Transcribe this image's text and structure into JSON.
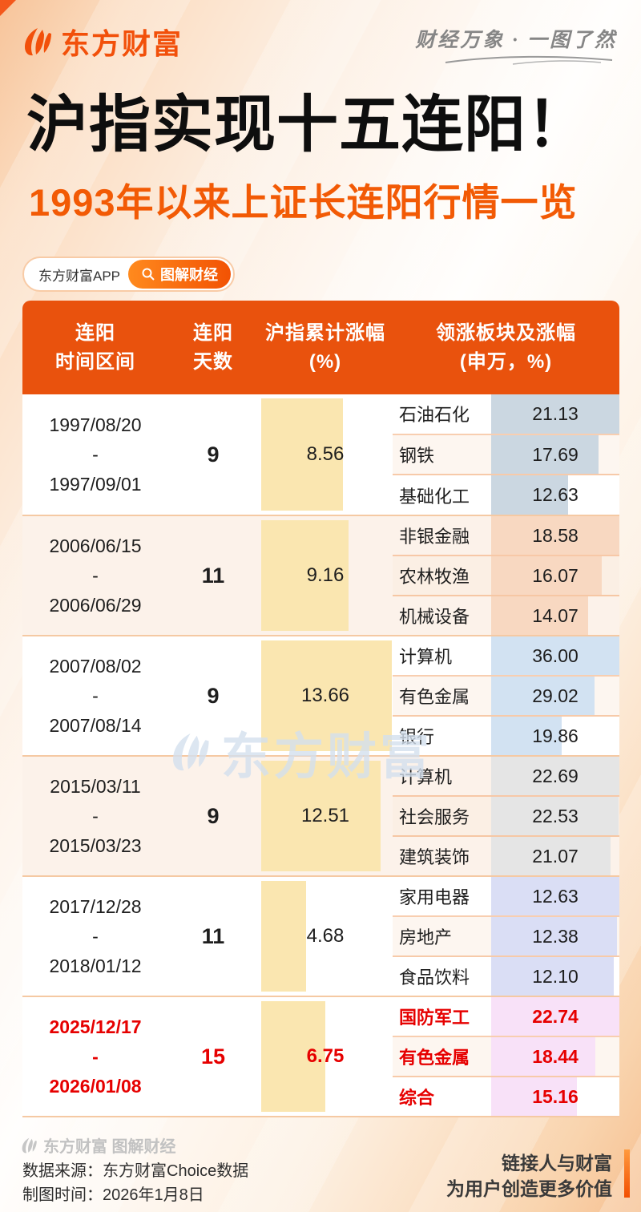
{
  "brand": {
    "logo_text": "东方财富",
    "tagline": "财经万象 · 一图了然"
  },
  "title": "沪指实现十五连阳！",
  "subtitle": "1993年以来上证长连阳行情一览",
  "badge": {
    "app_label": "东方财富APP",
    "pill_label": "图解财经"
  },
  "table": {
    "range_separator": "-",
    "headers": {
      "col1": [
        "连阳",
        "时间区间"
      ],
      "col2": [
        "连阳",
        "天数"
      ],
      "col3": [
        "沪指累计涨幅",
        "(%)"
      ],
      "col4": [
        "领涨板块及涨幅",
        "(申万，%)"
      ]
    },
    "rows": [
      {
        "start": "1997/08/20",
        "end": "1997/09/01",
        "days": "9",
        "gain": "8.56",
        "highlight": false,
        "bar_color": "#CBD7E1",
        "row_bg": "#FFFFFF",
        "sectors": [
          {
            "name": "石油石化",
            "value": "21.13"
          },
          {
            "name": "钢铁",
            "value": "17.69"
          },
          {
            "name": "基础化工",
            "value": "12.63"
          }
        ]
      },
      {
        "start": "2006/06/15",
        "end": "2006/06/29",
        "days": "11",
        "gain": "9.16",
        "highlight": false,
        "bar_color": "#F8D8C1",
        "row_bg": "#FCF2EA",
        "sectors": [
          {
            "name": "非银金融",
            "value": "18.58"
          },
          {
            "name": "农林牧渔",
            "value": "16.07"
          },
          {
            "name": "机械设备",
            "value": "14.07"
          }
        ]
      },
      {
        "start": "2007/08/02",
        "end": "2007/08/14",
        "days": "9",
        "gain": "13.66",
        "highlight": false,
        "bar_color": "#D2E2F2",
        "row_bg": "#FFFFFF",
        "sectors": [
          {
            "name": "计算机",
            "value": "36.00"
          },
          {
            "name": "有色金属",
            "value": "29.02"
          },
          {
            "name": "银行",
            "value": "19.86"
          }
        ]
      },
      {
        "start": "2015/03/11",
        "end": "2015/03/23",
        "days": "9",
        "gain": "12.51",
        "highlight": false,
        "bar_color": "#E5E5E5",
        "row_bg": "#FCF2EA",
        "sectors": [
          {
            "name": "计算机",
            "value": "22.69"
          },
          {
            "name": "社会服务",
            "value": "22.53"
          },
          {
            "name": "建筑装饰",
            "value": "21.07"
          }
        ]
      },
      {
        "start": "2017/12/28",
        "end": "2018/01/12",
        "days": "11",
        "gain": "4.68",
        "highlight": false,
        "bar_color": "#DADEF5",
        "row_bg": "#FFFFFF",
        "sectors": [
          {
            "name": "家用电器",
            "value": "12.63"
          },
          {
            "name": "房地产",
            "value": "12.38"
          },
          {
            "name": "食品饮料",
            "value": "12.10"
          }
        ]
      },
      {
        "start": "2025/12/17",
        "end": "2026/01/08",
        "days": "15",
        "gain": "6.75",
        "highlight": true,
        "bar_color": "#F8E1F8",
        "row_bg": "#FFFFFF",
        "sectors": [
          {
            "name": "国防军工",
            "value": "22.74"
          },
          {
            "name": "有色金属",
            "value": "18.44"
          },
          {
            "name": "综合",
            "value": "15.16"
          }
        ]
      }
    ]
  },
  "chart_data": {
    "type": "table",
    "title": "沪指实现十五连阳！",
    "subtitle": "1993年以来上证长连阳行情一览",
    "columns": [
      "连阳时间区间",
      "连阳天数",
      "沪指累计涨幅(%)",
      "领涨板块及涨幅(申万，%)"
    ],
    "rows": [
      {
        "period": "1997/08/20-1997/09/01",
        "days": 9,
        "index_gain_pct": 8.56,
        "leading_sectors": [
          [
            "石油石化",
            21.13
          ],
          [
            "钢铁",
            17.69
          ],
          [
            "基础化工",
            12.63
          ]
        ]
      },
      {
        "period": "2006/06/15-2006/06/29",
        "days": 11,
        "index_gain_pct": 9.16,
        "leading_sectors": [
          [
            "非银金融",
            18.58
          ],
          [
            "农林牧渔",
            16.07
          ],
          [
            "机械设备",
            14.07
          ]
        ]
      },
      {
        "period": "2007/08/02-2007/08/14",
        "days": 9,
        "index_gain_pct": 13.66,
        "leading_sectors": [
          [
            "计算机",
            36.0
          ],
          [
            "有色金属",
            29.02
          ],
          [
            "银行",
            19.86
          ]
        ]
      },
      {
        "period": "2015/03/11-2015/03/23",
        "days": 9,
        "index_gain_pct": 12.51,
        "leading_sectors": [
          [
            "计算机",
            22.69
          ],
          [
            "社会服务",
            22.53
          ],
          [
            "建筑装饰",
            21.07
          ]
        ]
      },
      {
        "period": "2017/12/28-2018/01/12",
        "days": 11,
        "index_gain_pct": 4.68,
        "leading_sectors": [
          [
            "家用电器",
            12.63
          ],
          [
            "房地产",
            12.38
          ],
          [
            "食品饮料",
            12.1
          ]
        ]
      },
      {
        "period": "2025/12/17-2026/01/08",
        "days": 15,
        "index_gain_pct": 6.75,
        "leading_sectors": [
          [
            "国防军工",
            22.74
          ],
          [
            "有色金属",
            18.44
          ],
          [
            "综合",
            15.16
          ]
        ]
      }
    ]
  },
  "watermark": {
    "text": "东方财富"
  },
  "footer": {
    "brand_line": "东方财富 图解财经",
    "source": "数据来源：东方财富Choice数据",
    "date": "制图时间：2026年1月8日",
    "slogan_line1": "链接人与财富",
    "slogan_line2": "为用户创造更多价值"
  },
  "colors": {
    "brand_orange": "#F2500A",
    "header_bg": "#E9520D",
    "subtitle_orange": "#F25A05",
    "highlight_red": "#E60000",
    "gain_bar_yellow": "#FAE6B0",
    "divider": "#F5C9A3"
  }
}
